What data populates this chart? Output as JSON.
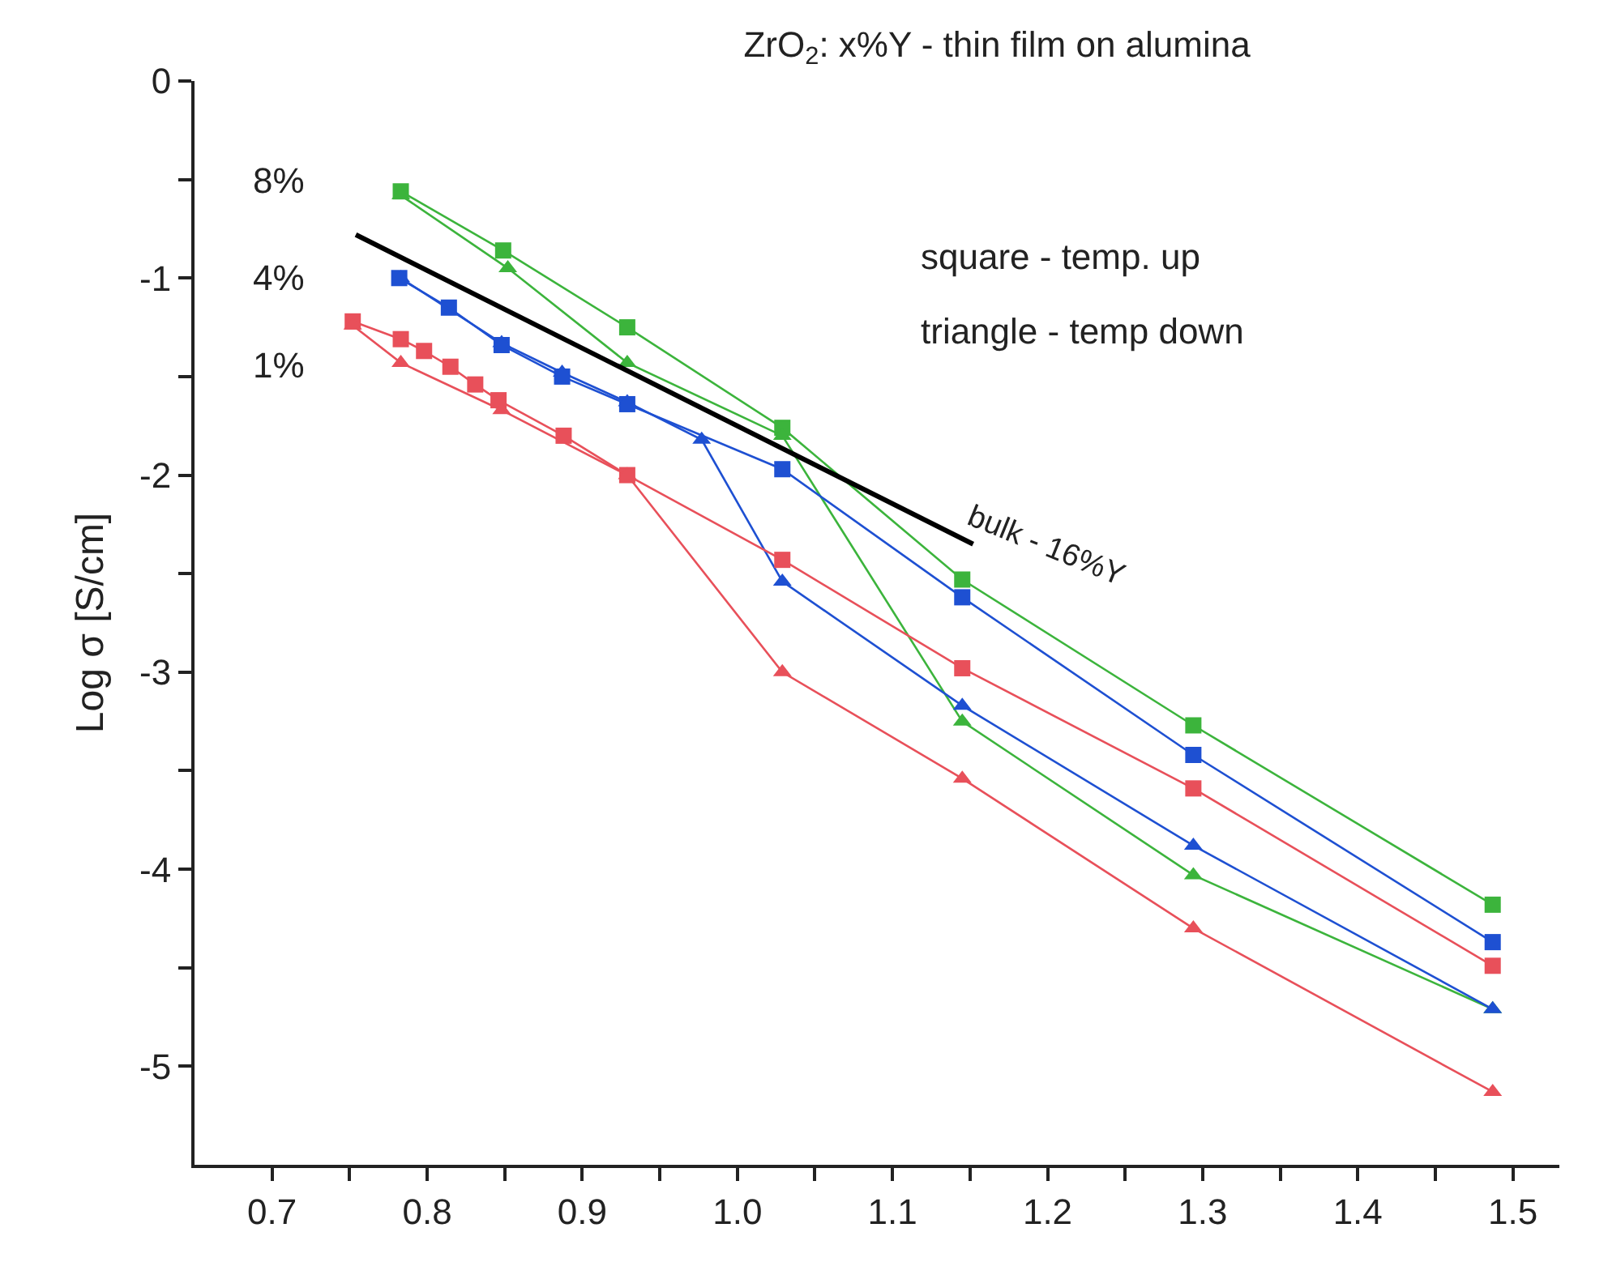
{
  "chart_data": {
    "type": "line",
    "title": "ZrO$_{2}$: x%Y - thin film on alumina",
    "ylabel": "Log σ [S/cm]",
    "xlim": [
      0.65,
      1.53
    ],
    "ylim": [
      -5.5,
      0
    ],
    "xticks": [
      0.7,
      {
        "value": 0.75,
        "label": null
      },
      0.8,
      {
        "value": 0.85,
        "label": null
      },
      0.9,
      {
        "value": 0.95,
        "label": null
      },
      {
        "value": 1.0,
        "label": "1.0"
      },
      {
        "value": 1.05,
        "label": null
      },
      1.1,
      {
        "value": 1.15,
        "label": null
      },
      1.2,
      {
        "value": 1.25,
        "label": null
      },
      1.3,
      {
        "value": 1.35,
        "label": null
      },
      1.4,
      {
        "value": 1.45,
        "label": null
      },
      1.5
    ],
    "yticks": [
      0,
      {
        "value": -0.5,
        "label": null
      },
      -1,
      {
        "value": -1.5,
        "label": null
      },
      -2,
      {
        "value": -2.5,
        "label": null
      },
      -3,
      {
        "value": -3.5,
        "label": null
      },
      -4,
      {
        "value": -4.5,
        "label": null
      },
      -5
    ],
    "line_style": "solid",
    "series": [
      {
        "color": "#3cb43c",
        "marker": "square",
        "x": [
          0.783,
          0.849,
          0.929,
          1.029,
          1.145,
          1.294,
          1.487
        ],
        "values": [
          -0.56,
          -0.86,
          -1.25,
          -1.76,
          -2.53,
          -3.27,
          -4.18
        ]
      },
      {
        "color": "#3cb43c",
        "marker": "triangle",
        "x": [
          0.783,
          0.852,
          0.929,
          1.029,
          1.145,
          1.294,
          1.487
        ],
        "values": [
          -0.58,
          -0.95,
          -1.43,
          -1.8,
          -3.25,
          -4.03,
          -4.71
        ]
      },
      {
        "color": "#1e50d2",
        "marker": "square",
        "x": [
          0.782,
          0.814,
          0.848,
          0.887,
          0.929,
          1.029,
          1.145,
          1.294,
          1.487
        ],
        "values": [
          -1.0,
          -1.15,
          -1.34,
          -1.5,
          -1.64,
          -1.97,
          -2.62,
          -3.42,
          -4.37
        ]
      },
      {
        "color": "#1e50d2",
        "marker": "triangle",
        "x": [
          0.783,
          0.848,
          0.887,
          0.929,
          0.977,
          1.029,
          1.145,
          1.294,
          1.487
        ],
        "values": [
          -1.0,
          -1.33,
          -1.48,
          -1.63,
          -1.82,
          -2.54,
          -3.17,
          -3.88,
          -4.71
        ]
      },
      {
        "color": "#e8505a",
        "marker": "square",
        "x": [
          0.752,
          0.783,
          0.798,
          0.815,
          0.831,
          0.846,
          0.888,
          0.929,
          1.029,
          1.145,
          1.294,
          1.487
        ],
        "values": [
          -1.22,
          -1.31,
          -1.37,
          -1.45,
          -1.54,
          -1.62,
          -1.8,
          -2.0,
          -2.43,
          -2.98,
          -3.59,
          -4.49
        ]
      },
      {
        "color": "#e8505a",
        "marker": "triangle",
        "x": [
          0.752,
          0.783,
          0.848,
          0.929,
          1.029,
          1.145,
          1.294,
          1.487
        ],
        "values": [
          -1.24,
          -1.43,
          -1.67,
          -2.0,
          -3.0,
          -3.54,
          -4.3,
          -5.13
        ]
      },
      {
        "type": "line",
        "color": "#000000",
        "marker": "none",
        "x": [
          0.754,
          1.152
        ],
        "values": [
          -0.78,
          -2.35
        ]
      }
    ],
    "annotations": [
      "8%",
      "4%",
      "1%",
      "square - temp. up",
      "triangle - temp down",
      "bulk - 16%Y"
    ]
  }
}
